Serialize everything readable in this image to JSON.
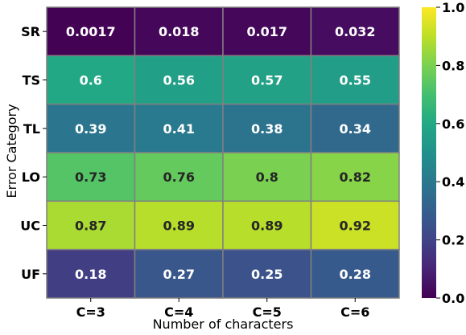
{
  "chart_data": {
    "type": "heatmap",
    "title": "",
    "xlabel": "Number of characters",
    "ylabel": "Error Category",
    "x_categories": [
      "C=3",
      "C=4",
      "C=5",
      "C=6"
    ],
    "y_categories": [
      "SR",
      "TS",
      "TL",
      "LO",
      "UC",
      "UF"
    ],
    "values": [
      [
        "0.0017",
        "0.018",
        "0.017",
        "0.032"
      ],
      [
        "0.6",
        "0.56",
        "0.57",
        "0.55"
      ],
      [
        "0.39",
        "0.41",
        "0.38",
        "0.34"
      ],
      [
        "0.73",
        "0.76",
        "0.8",
        "0.82"
      ],
      [
        "0.87",
        "0.89",
        "0.89",
        "0.92"
      ],
      [
        "0.18",
        "0.27",
        "0.25",
        "0.28"
      ]
    ],
    "colormap": "viridis",
    "vmin": 0.0,
    "vmax": 1.0,
    "colorbar_ticks": [
      "0.0",
      "0.2",
      "0.4",
      "0.6",
      "0.8",
      "1.0"
    ],
    "grid": false,
    "cell_border_color": "#808080"
  }
}
